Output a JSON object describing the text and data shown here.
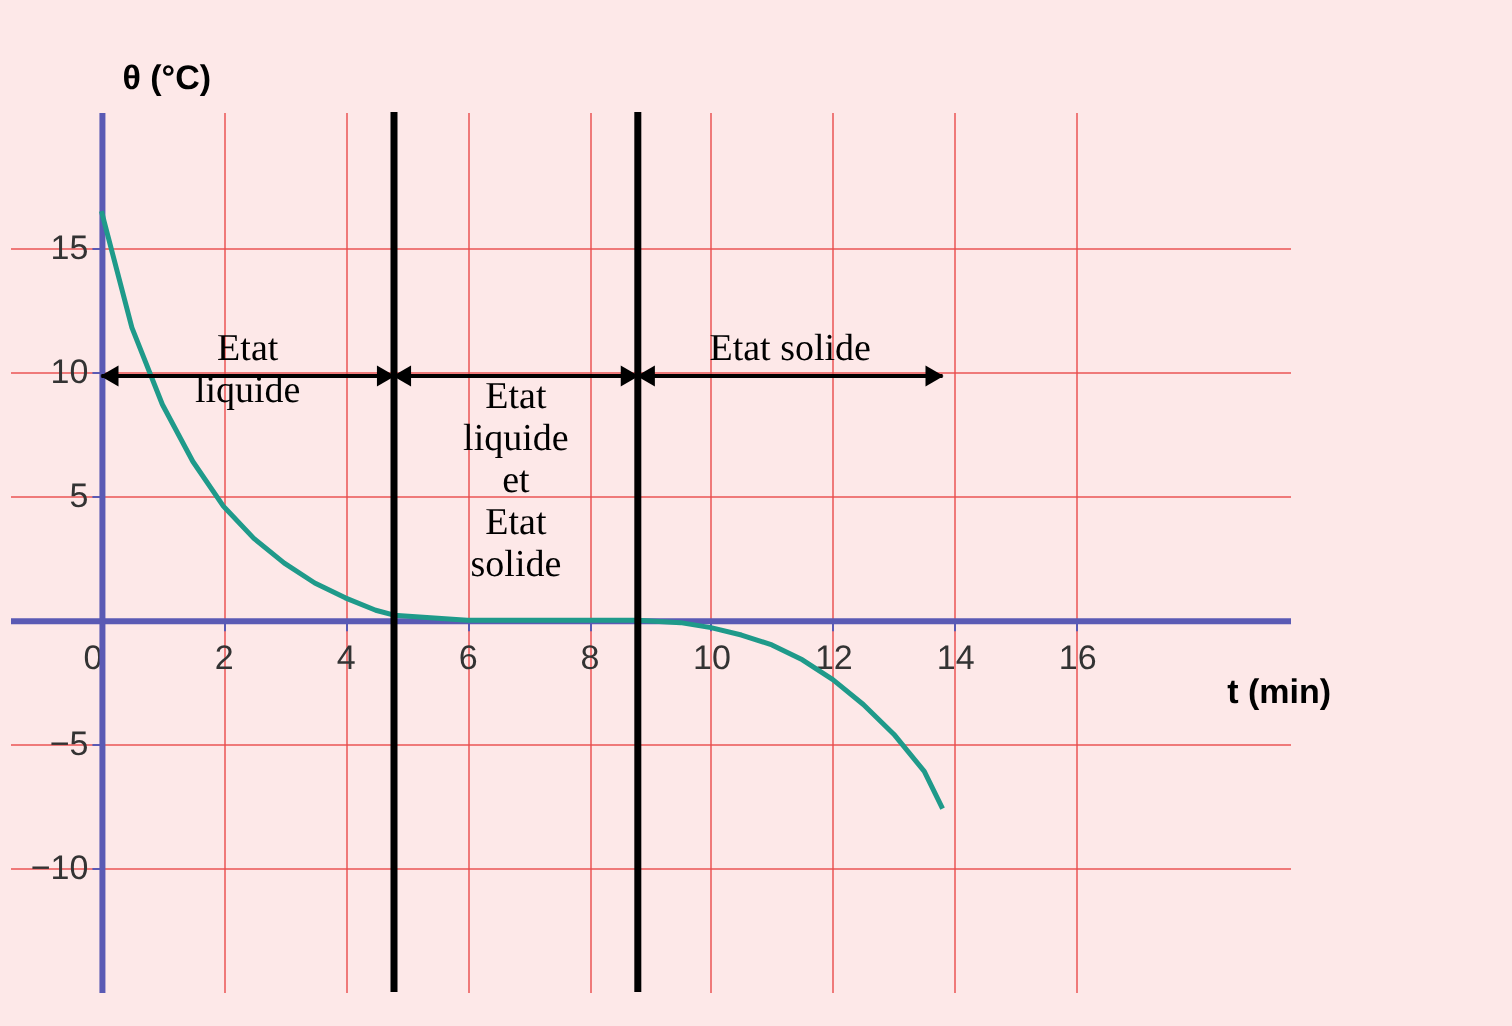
{
  "chart_data": {
    "type": "line",
    "xlabel": "t (min)",
    "ylabel": "θ (°C)",
    "x": [
      0,
      0.5,
      1,
      1.5,
      2,
      2.5,
      3,
      3.5,
      4,
      4.5,
      4.8,
      6,
      8,
      8.8,
      9.5,
      10,
      10.5,
      11,
      11.5,
      12,
      12.5,
      13,
      13.5,
      13.8
    ],
    "series": [
      {
        "color": "#1f9a8a",
        "values": [
          16.5,
          11.8,
          8.7,
          6.4,
          4.6,
          3.3,
          2.3,
          1.5,
          0.9,
          0.4,
          0.2,
          0,
          0,
          0,
          -0.1,
          -0.3,
          -0.6,
          -1,
          -1.6,
          -2.4,
          -3.4,
          -4.6,
          -6.1,
          -7.6
        ]
      }
    ],
    "xlim": [
      -1.5,
      19.5
    ],
    "ylim": [
      -15,
      20.5
    ],
    "xticks": [
      0,
      2,
      4,
      6,
      8,
      10,
      12,
      14,
      16
    ],
    "yticks": [
      -10,
      -5,
      5,
      10,
      15
    ],
    "grid": true,
    "marker": "none",
    "line_style": "solid",
    "ref_lines": [
      {
        "axis": "x",
        "value": 4.8,
        "color": "#000000"
      },
      {
        "axis": "x",
        "value": 8.8,
        "color": "#000000"
      }
    ],
    "annotations": [
      "Etat\nliquide",
      "Etat\nliquide\net\nEtat\nsolide",
      "Etat solide"
    ]
  }
}
